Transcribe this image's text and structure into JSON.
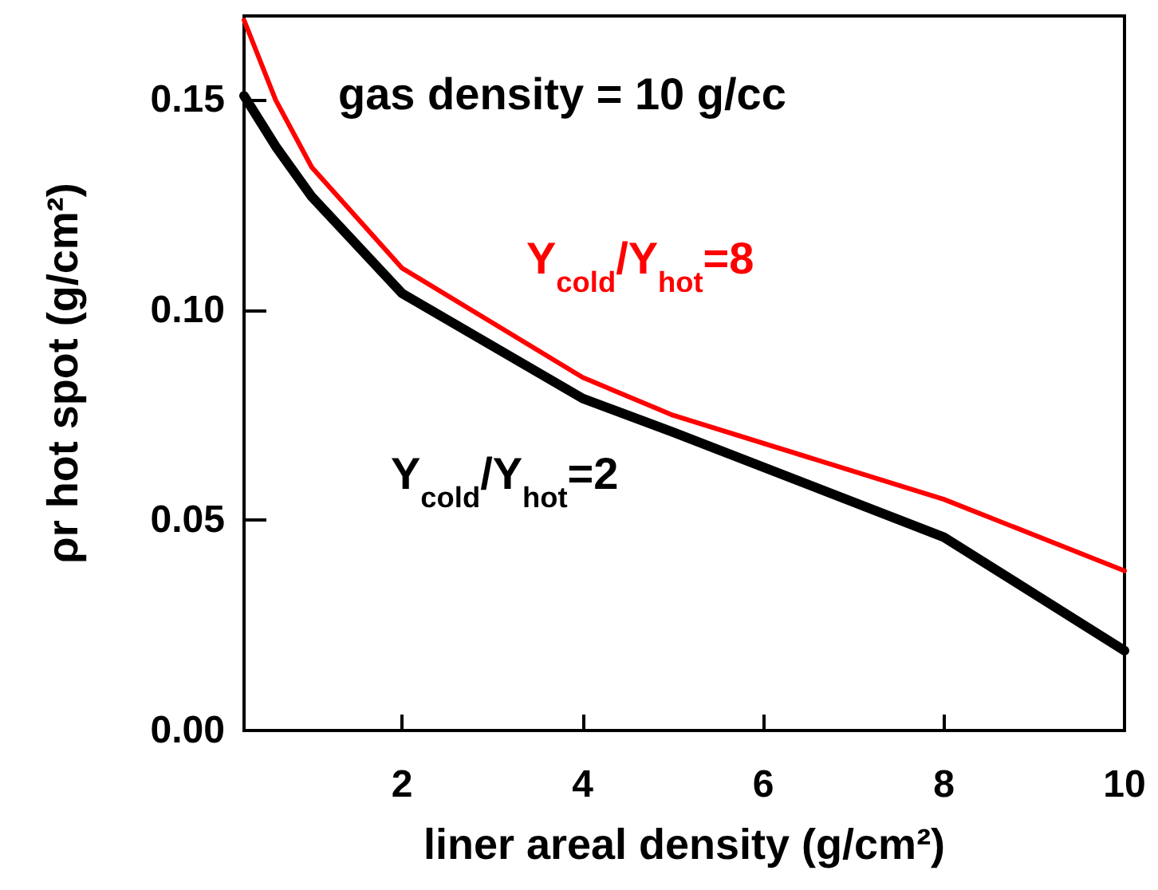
{
  "chart_data": {
    "type": "line",
    "xlabel": "liner areal density (g/cm²)",
    "ylabel": "ρr hot spot (g/cm²)",
    "annotations": [
      "gas density = 10 g/cc"
    ],
    "xlim": [
      0.25,
      10
    ],
    "xticks": [
      2,
      4,
      6,
      8,
      10
    ],
    "ylim": [
      0,
      0.17
    ],
    "yticks": [
      {
        "value": 0,
        "label": "0.00"
      },
      {
        "value": 0.05,
        "label": "0.05"
      },
      {
        "value": 0.1,
        "label": "0.10"
      },
      {
        "value": 0.15,
        "label": "0.15"
      }
    ],
    "grid": false,
    "legend": false,
    "marker": "none",
    "line_style": "solid",
    "series": [
      {
        "name": "Y$_{cold}$/Y$_{hot}$=8",
        "color": "#ff0000",
        "x": [
          0.25,
          0.6,
          1,
          2,
          4,
          5,
          8,
          10
        ],
        "values": [
          0.169,
          0.15,
          0.134,
          0.11,
          0.084,
          0.075,
          0.055,
          0.038
        ]
      },
      {
        "name": "Y$_{cold}$/Y$_{hot}$=2",
        "color": "#000000",
        "x": [
          0.25,
          0.6,
          1,
          2,
          4,
          5,
          8,
          10
        ],
        "values": [
          0.151,
          0.139,
          0.127,
          0.104,
          0.079,
          0.071,
          0.046,
          0.019
        ]
      }
    ]
  }
}
